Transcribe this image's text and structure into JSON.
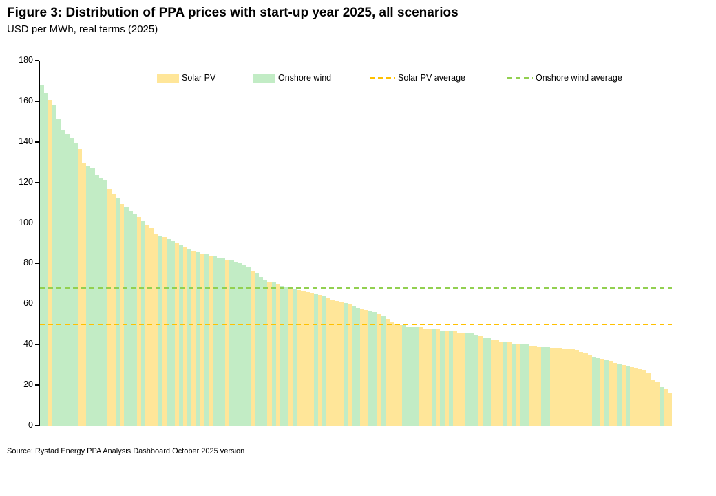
{
  "figure": {
    "title": "Figure 3: Distribution of PPA prices with start-up year 2025, all scenarios",
    "subtitle": "USD per MWh, real terms (2025)",
    "source": "Source: Rystad Energy PPA Analysis Dashboard October 2025 version"
  },
  "colors": {
    "solar_bar": "#FFE699",
    "wind_bar": "#C2ECC5",
    "solar_avg_line": "#FFC000",
    "wind_avg_line": "#92D050",
    "axis": "#000000"
  },
  "legend": [
    {
      "label": "Solar PV",
      "type": "swatch",
      "color": "#FFE699",
      "x": 228
    },
    {
      "label": "Onshore wind",
      "type": "swatch",
      "color": "#C2ECC5",
      "x": 368
    },
    {
      "label": "Solar PV average",
      "type": "dash",
      "color": "#FFC000",
      "x": 537
    },
    {
      "label": "Onshore wind average",
      "type": "dash",
      "color": "#92D050",
      "x": 737
    }
  ],
  "chart_data": {
    "type": "bar",
    "title": "Distribution of PPA prices with start-up year 2025, all scenarios",
    "unit": "USD per MWh, real terms (2025)",
    "xlabel": "",
    "ylabel": "USD per MWh",
    "ylim": [
      0,
      180
    ],
    "yticks": [
      0,
      20,
      40,
      60,
      80,
      100,
      120,
      140,
      160,
      180
    ],
    "grid": false,
    "legend_position": "top",
    "series_legend": {
      "S": "Solar PV",
      "W": "Onshore wind"
    },
    "averages": {
      "solar_pv_average": 50,
      "onshore_wind_average": 68
    },
    "bar_series": "WWSWWWWWWSSWWWWWSSWSWWWSWSSSWSWWSWSWSWSWSWWWSWWWWWSWWWSWSWWSWSSSSWSWSSSSWSWWSSWWSWSSSSWWWWSSSWSWSWSSSWWWSWWSSSWSWSWWSSSWWSSSSSSSSSSWWSWSSWSWSSSSSSSWSS",
    "bar_values": [
      168,
      164,
      160.5,
      158,
      151,
      146,
      143.5,
      141.5,
      139.5,
      136.5,
      129.5,
      128,
      127,
      123.5,
      122,
      121,
      117,
      114.5,
      112,
      109.5,
      107.5,
      106,
      104.5,
      103,
      101,
      99,
      97.5,
      94.5,
      93.5,
      93,
      92,
      91,
      90,
      89,
      88,
      87,
      86,
      85.5,
      85,
      84.5,
      84,
      83.5,
      83,
      82.5,
      82,
      81.5,
      81,
      80,
      79,
      78,
      76.5,
      75,
      73.5,
      72,
      71,
      70.5,
      70,
      69,
      68.5,
      68,
      67.5,
      67,
      66.5,
      66,
      65.5,
      65,
      64.5,
      64,
      63,
      62,
      61.5,
      61,
      60.5,
      60,
      59,
      58,
      57.5,
      57,
      56.5,
      56,
      55,
      54,
      52.5,
      51,
      50,
      49.5,
      49.5,
      49,
      49,
      48.5,
      48.5,
      48,
      48,
      47.5,
      47.5,
      47,
      47,
      46.5,
      46.5,
      46,
      46,
      45.5,
      45.5,
      45,
      44,
      43.5,
      43,
      42.5,
      42,
      41.5,
      41,
      41,
      40.5,
      40.5,
      40,
      40,
      39.5,
      39.5,
      39,
      39,
      39,
      38.5,
      38.5,
      38.5,
      38,
      38,
      38,
      37.5,
      36.5,
      35.5,
      34.5,
      34,
      33.5,
      33,
      32.5,
      32,
      31,
      30.5,
      30,
      29.5,
      29,
      28.5,
      28,
      27.5,
      26,
      22.5,
      21.5,
      19,
      18.5,
      16
    ]
  }
}
